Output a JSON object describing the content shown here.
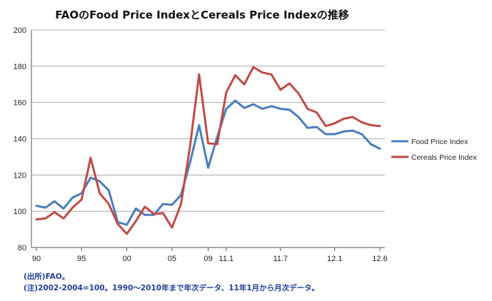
{
  "notes": {
    "source": "(出所)FAO。",
    "remark": "(注)2002-2004=100。1990～2010年まで年次データ、11年1月から月次データ。"
  },
  "chart_data": {
    "type": "line",
    "title": "FAOのFood Price IndexとCereals Price Indexの推移",
    "xlabel": "",
    "ylabel": "",
    "ylim": [
      80,
      200
    ],
    "y_ticks": [
      80,
      100,
      120,
      140,
      160,
      180,
      200
    ],
    "grid": "horizontal",
    "legend_position": "right",
    "x_tick_labels": [
      {
        "i": 0,
        "label": "90"
      },
      {
        "i": 5,
        "label": "95"
      },
      {
        "i": 10,
        "label": "00"
      },
      {
        "i": 15,
        "label": "05"
      },
      {
        "i": 19,
        "label": "09"
      },
      {
        "i": 21,
        "label": "11.1"
      },
      {
        "i": 27,
        "label": "11.7"
      },
      {
        "i": 33,
        "label": "12.1"
      },
      {
        "i": 38,
        "label": "12.6"
      }
    ],
    "x": [
      "1990",
      "1991",
      "1992",
      "1993",
      "1994",
      "1995",
      "1996",
      "1997",
      "1998",
      "1999",
      "2000",
      "2001",
      "2002",
      "2003",
      "2004",
      "2005",
      "2006",
      "2007",
      "2008",
      "2009",
      "2010",
      "2011.1",
      "2011.2",
      "2011.3",
      "2011.4",
      "2011.5",
      "2011.6",
      "2011.7",
      "2011.8",
      "2011.9",
      "2011.10",
      "2011.11",
      "2011.12",
      "2012.1",
      "2012.2",
      "2012.3",
      "2012.4",
      "2012.5",
      "2012.6"
    ],
    "series": [
      {
        "name": "Food Price Index",
        "color": "#4a7ebb",
        "values": [
          103,
          102,
          105.5,
          101.5,
          107.5,
          110,
          118.5,
          116.5,
          111.5,
          94,
          92.5,
          101.5,
          98,
          98,
          104,
          103.5,
          109,
          127,
          147.5,
          124,
          141,
          156.5,
          161,
          157,
          159,
          156.5,
          158,
          156.5,
          156,
          152,
          146,
          146.5,
          142.5,
          142.5,
          144,
          144.5,
          142.5,
          137,
          134.5
        ]
      },
      {
        "name": "Cereals Price Index",
        "color": "#be4b48",
        "values": [
          95.5,
          96,
          99.5,
          96,
          102,
          106.5,
          129.5,
          110,
          104,
          93,
          87.5,
          94.5,
          102.5,
          98.5,
          99,
          91,
          104,
          136,
          175.5,
          137.5,
          137,
          165.5,
          175,
          170,
          179.5,
          176.5,
          175.5,
          167,
          170.5,
          165,
          156.5,
          154.5,
          147,
          148.5,
          151,
          152,
          149,
          147.5,
          147
        ]
      }
    ]
  }
}
